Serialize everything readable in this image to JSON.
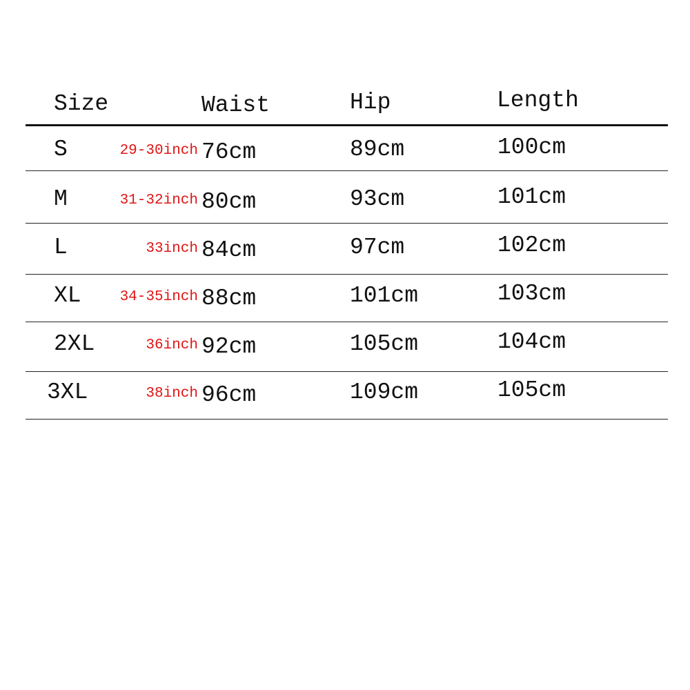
{
  "headers": [
    "Size",
    "Waist",
    "Hip",
    "Length"
  ],
  "rows": [
    {
      "size": "S",
      "inch": "29-30inch",
      "waist": "76cm",
      "hip": "89cm",
      "length": "100cm"
    },
    {
      "size": "M",
      "inch": "31-32inch",
      "waist": "80cm",
      "hip": "93cm",
      "length": "101cm"
    },
    {
      "size": "L",
      "inch": "33inch",
      "waist": "84cm",
      "hip": "97cm",
      "length": "102cm"
    },
    {
      "size": "XL",
      "inch": "34-35inch",
      "waist": "88cm",
      "hip": "101cm",
      "length": "103cm"
    },
    {
      "size": "2XL",
      "inch": "36inch",
      "waist": "92cm",
      "hip": "105cm",
      "length": "104cm"
    },
    {
      "size": "3XL",
      "inch": "38inch",
      "waist": "96cm",
      "hip": "109cm",
      "length": "105cm"
    }
  ],
  "colors": {
    "inch_text": "#e01515",
    "text": "#111111"
  }
}
